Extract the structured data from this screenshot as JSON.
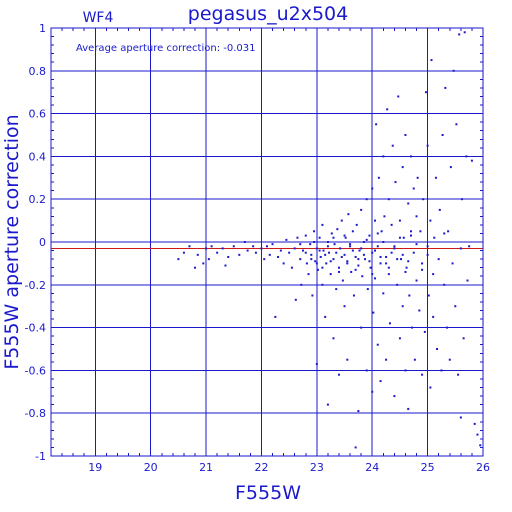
{
  "chart_data": {
    "type": "scatter",
    "title": "pegasus_u2x504",
    "subtitle": "WF4",
    "annotation": "Average aperture correction: -0.031",
    "xlabel": "F555W",
    "ylabel": "F555W aperture correction",
    "xlim": [
      18.2,
      26
    ],
    "ylim": [
      -1,
      1
    ],
    "x_ticks": [
      19,
      20,
      21,
      22,
      23,
      24,
      25,
      26
    ],
    "y_ticks": [
      -1,
      -0.8,
      -0.6,
      -0.4,
      -0.2,
      0,
      0.2,
      0.4,
      0.6,
      0.8,
      1
    ],
    "x_tick_labels": [
      "19",
      "20",
      "21",
      "22",
      "23",
      "24",
      "25",
      "26"
    ],
    "y_tick_labels": [
      "-1",
      "-0.8",
      "-0.6",
      "-0.4",
      "-0.2",
      "0",
      "0.2",
      "0.4",
      "0.6",
      "0.8",
      "1"
    ],
    "grid": true,
    "reference_lines": [
      {
        "y": 0,
        "color": "#1a1acc"
      },
      {
        "y": -0.031,
        "color": "#cc1a1a"
      }
    ],
    "series": [
      {
        "color": "#1a1acc",
        "points": [
          [
            20.5,
            -0.08
          ],
          [
            20.6,
            -0.05
          ],
          [
            20.7,
            -0.02
          ],
          [
            20.8,
            -0.12
          ],
          [
            20.85,
            -0.06
          ],
          [
            20.95,
            -0.1
          ],
          [
            21.0,
            -0.03
          ],
          [
            21.05,
            -0.08
          ],
          [
            21.1,
            -0.02
          ],
          [
            21.2,
            -0.05
          ],
          [
            21.3,
            -0.03
          ],
          [
            21.35,
            -0.11
          ],
          [
            21.4,
            -0.07
          ],
          [
            21.5,
            -0.02
          ],
          [
            21.6,
            -0.06
          ],
          [
            21.7,
            0.0
          ],
          [
            21.75,
            -0.04
          ],
          [
            21.85,
            -0.02
          ],
          [
            21.9,
            -0.05
          ],
          [
            22.0,
            -0.03
          ],
          [
            22.05,
            -0.08
          ],
          [
            22.1,
            -0.02
          ],
          [
            22.15,
            -0.06
          ],
          [
            22.2,
            -0.01
          ],
          [
            22.25,
            -0.35
          ],
          [
            22.3,
            -0.07
          ],
          [
            22.35,
            -0.04
          ],
          [
            22.4,
            -0.1
          ],
          [
            22.45,
            0.01
          ],
          [
            22.5,
            -0.05
          ],
          [
            22.55,
            -0.12
          ],
          [
            22.6,
            -0.03
          ],
          [
            22.62,
            -0.27
          ],
          [
            22.65,
            0.02
          ],
          [
            22.7,
            -0.08
          ],
          [
            22.72,
            -0.2
          ],
          [
            22.75,
            -0.04
          ],
          [
            22.8,
            0.03
          ],
          [
            22.82,
            -0.1
          ],
          [
            22.85,
            -0.15
          ],
          [
            22.88,
            -0.01
          ],
          [
            22.9,
            -0.06
          ],
          [
            22.92,
            -0.25
          ],
          [
            22.95,
            0.05
          ],
          [
            22.97,
            -0.09
          ],
          [
            23.0,
            -0.03
          ],
          [
            23.0,
            -0.57
          ],
          [
            23.02,
            -0.13
          ],
          [
            23.05,
            0.02
          ],
          [
            23.07,
            -0.07
          ],
          [
            23.1,
            -0.2
          ],
          [
            23.1,
            0.08
          ],
          [
            23.12,
            -0.04
          ],
          [
            23.15,
            -0.35
          ],
          [
            23.17,
            -0.1
          ],
          [
            23.2,
            0.0
          ],
          [
            23.2,
            -0.76
          ],
          [
            23.22,
            -0.05
          ],
          [
            23.25,
            -0.15
          ],
          [
            23.27,
            0.04
          ],
          [
            23.3,
            -0.08
          ],
          [
            23.3,
            -0.45
          ],
          [
            23.32,
            -0.01
          ],
          [
            23.35,
            -0.22
          ],
          [
            23.37,
            0.06
          ],
          [
            23.4,
            -0.12
          ],
          [
            23.4,
            -0.62
          ],
          [
            23.42,
            -0.03
          ],
          [
            23.45,
            0.1
          ],
          [
            23.47,
            -0.18
          ],
          [
            23.5,
            -0.06
          ],
          [
            23.5,
            -0.3
          ],
          [
            23.52,
            0.02
          ],
          [
            23.55,
            -0.09
          ],
          [
            23.55,
            -0.55
          ],
          [
            23.57,
            0.13
          ],
          [
            23.6,
            -0.02
          ],
          [
            23.62,
            -0.14
          ],
          [
            23.65,
            0.05
          ],
          [
            23.67,
            -0.25
          ],
          [
            23.7,
            -0.07
          ],
          [
            23.7,
            -0.96
          ],
          [
            23.72,
            0.08
          ],
          [
            23.75,
            -0.11
          ],
          [
            23.75,
            -0.79
          ],
          [
            23.77,
            -0.04
          ],
          [
            23.8,
            0.15
          ],
          [
            23.8,
            -0.4
          ],
          [
            23.82,
            -0.16
          ],
          [
            23.85,
            0.0
          ],
          [
            23.87,
            -0.08
          ],
          [
            23.9,
            0.2
          ],
          [
            23.9,
            -0.6
          ],
          [
            23.92,
            -0.22
          ],
          [
            23.95,
            0.03
          ],
          [
            23.97,
            -0.12
          ],
          [
            24.0,
            0.25
          ],
          [
            24.0,
            -0.05
          ],
          [
            24.0,
            -0.7
          ],
          [
            24.02,
            -0.33
          ],
          [
            24.05,
            0.1
          ],
          [
            24.05,
            -0.17
          ],
          [
            24.07,
            0.55
          ],
          [
            24.1,
            -0.02
          ],
          [
            24.1,
            -0.48
          ],
          [
            24.12,
            0.3
          ],
          [
            24.15,
            -0.1
          ],
          [
            24.15,
            -0.65
          ],
          [
            24.17,
            0.05
          ],
          [
            24.2,
            0.4
          ],
          [
            24.2,
            -0.24
          ],
          [
            24.22,
            0.12
          ],
          [
            24.25,
            -0.07
          ],
          [
            24.25,
            -0.55
          ],
          [
            24.27,
            0.62
          ],
          [
            24.3,
            0.2
          ],
          [
            24.3,
            -0.15
          ],
          [
            24.32,
            -0.38
          ],
          [
            24.35,
            0.08
          ],
          [
            24.37,
            0.45
          ],
          [
            24.4,
            -0.03
          ],
          [
            24.4,
            -0.72
          ],
          [
            24.42,
            0.28
          ],
          [
            24.45,
            -0.2
          ],
          [
            24.47,
            0.68
          ],
          [
            24.5,
            0.1
          ],
          [
            24.5,
            -0.45
          ],
          [
            24.52,
            -0.08
          ],
          [
            24.55,
            0.35
          ],
          [
            24.55,
            -0.3
          ],
          [
            24.57,
            0.02
          ],
          [
            24.6,
            0.5
          ],
          [
            24.6,
            -0.6
          ],
          [
            24.62,
            -0.12
          ],
          [
            24.65,
            0.18
          ],
          [
            24.65,
            -0.78
          ],
          [
            24.67,
            -0.25
          ],
          [
            24.7,
            0.05
          ],
          [
            24.7,
            0.4
          ],
          [
            24.72,
            -0.4
          ],
          [
            24.75,
            0.25
          ],
          [
            24.75,
            -0.05
          ],
          [
            24.77,
            -0.55
          ],
          [
            24.8,
            0.12
          ],
          [
            24.8,
            -0.18
          ],
          [
            24.82,
            0.3
          ],
          [
            24.85,
            -0.32
          ],
          [
            24.87,
            0.05
          ],
          [
            24.9,
            -0.1
          ],
          [
            24.9,
            -0.62
          ],
          [
            24.92,
            0.2
          ],
          [
            24.95,
            -0.42
          ],
          [
            24.97,
            0.7
          ],
          [
            25.0,
            -0.06
          ],
          [
            25.0,
            0.45
          ],
          [
            25.02,
            -0.25
          ],
          [
            25.05,
            -0.68
          ],
          [
            25.05,
            0.1
          ],
          [
            25.07,
            0.85
          ],
          [
            25.1,
            -0.15
          ],
          [
            25.1,
            -0.35
          ],
          [
            25.12,
            0.02
          ],
          [
            25.15,
            0.3
          ],
          [
            25.17,
            -0.5
          ],
          [
            25.2,
            -0.08
          ],
          [
            25.22,
            0.15
          ],
          [
            25.25,
            -0.6
          ],
          [
            25.27,
            0.5
          ],
          [
            25.3,
            -0.2
          ],
          [
            25.32,
            0.72
          ],
          [
            25.35,
            -0.4
          ],
          [
            25.37,
            0.05
          ],
          [
            25.4,
            -0.55
          ],
          [
            25.42,
            0.35
          ],
          [
            25.45,
            -0.1
          ],
          [
            25.47,
            0.8
          ],
          [
            25.5,
            -0.3
          ],
          [
            25.52,
            0.55
          ],
          [
            25.55,
            -0.62
          ],
          [
            25.57,
            0.97
          ],
          [
            25.6,
            -0.82
          ],
          [
            25.62,
            0.2
          ],
          [
            25.65,
            -0.45
          ],
          [
            25.67,
            0.98
          ],
          [
            25.7,
            0.4
          ],
          [
            25.72,
            -0.18
          ],
          [
            25.75,
            -0.02
          ],
          [
            25.8,
            0.38
          ],
          [
            25.85,
            -0.85
          ],
          [
            25.9,
            -0.9
          ],
          [
            25.95,
            -0.95
          ],
          [
            22.8,
            -0.05
          ],
          [
            22.9,
            -0.08
          ],
          [
            23.0,
            -0.1
          ],
          [
            23.05,
            -0.04
          ],
          [
            23.15,
            -0.06
          ],
          [
            23.25,
            -0.09
          ],
          [
            23.35,
            -0.05
          ],
          [
            23.45,
            -0.07
          ],
          [
            23.55,
            -0.1
          ],
          [
            23.65,
            -0.04
          ],
          [
            23.75,
            -0.08
          ],
          [
            23.85,
            -0.06
          ],
          [
            23.95,
            -0.09
          ],
          [
            24.05,
            -0.04
          ],
          [
            24.15,
            -0.07
          ],
          [
            24.25,
            -0.1
          ],
          [
            24.35,
            -0.05
          ],
          [
            24.45,
            -0.08
          ],
          [
            24.55,
            -0.06
          ],
          [
            24.65,
            -0.09
          ],
          [
            22.7,
            -0.01
          ],
          [
            22.95,
            0.0
          ],
          [
            23.3,
            0.02
          ],
          [
            23.6,
            -0.01
          ],
          [
            23.9,
            0.01
          ],
          [
            24.2,
            0.0
          ],
          [
            24.5,
            0.02
          ],
          [
            24.8,
            -0.01
          ],
          [
            23.1,
            -0.12
          ],
          [
            23.4,
            -0.14
          ],
          [
            23.7,
            -0.13
          ],
          [
            24.0,
            -0.15
          ],
          [
            24.3,
            -0.12
          ],
          [
            24.6,
            -0.14
          ],
          [
            24.9,
            -0.13
          ],
          [
            23.2,
            -0.02
          ],
          [
            23.5,
            0.03
          ],
          [
            23.8,
            -0.03
          ],
          [
            24.1,
            0.04
          ],
          [
            24.4,
            -0.02
          ],
          [
            24.7,
            0.03
          ],
          [
            25.0,
            -0.02
          ],
          [
            25.3,
            0.04
          ],
          [
            25.6,
            -0.03
          ]
        ]
      }
    ]
  }
}
